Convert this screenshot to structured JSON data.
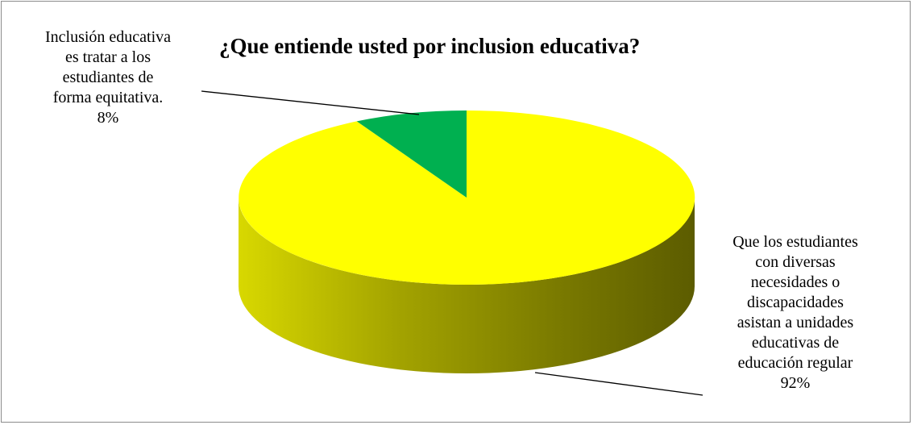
{
  "chart_data": {
    "type": "pie",
    "title": "¿Que entiende usted por inclusion educativa?",
    "three_d": true,
    "slices": [
      {
        "label_lines": [
          "Inclusión educativa",
          "es tratar a los",
          "estudiantes de",
          "forma equitativa."
        ],
        "percent_label": "8%",
        "value": 8,
        "color": "#00b050"
      },
      {
        "label_lines": [
          "Que los estudiantes",
          "con diversas",
          "necesidades o",
          "discapacidades",
          "asistan a unidades",
          "educativas de",
          "educación regular"
        ],
        "percent_label": "92%",
        "value": 92,
        "color": "#ffff00"
      }
    ]
  }
}
